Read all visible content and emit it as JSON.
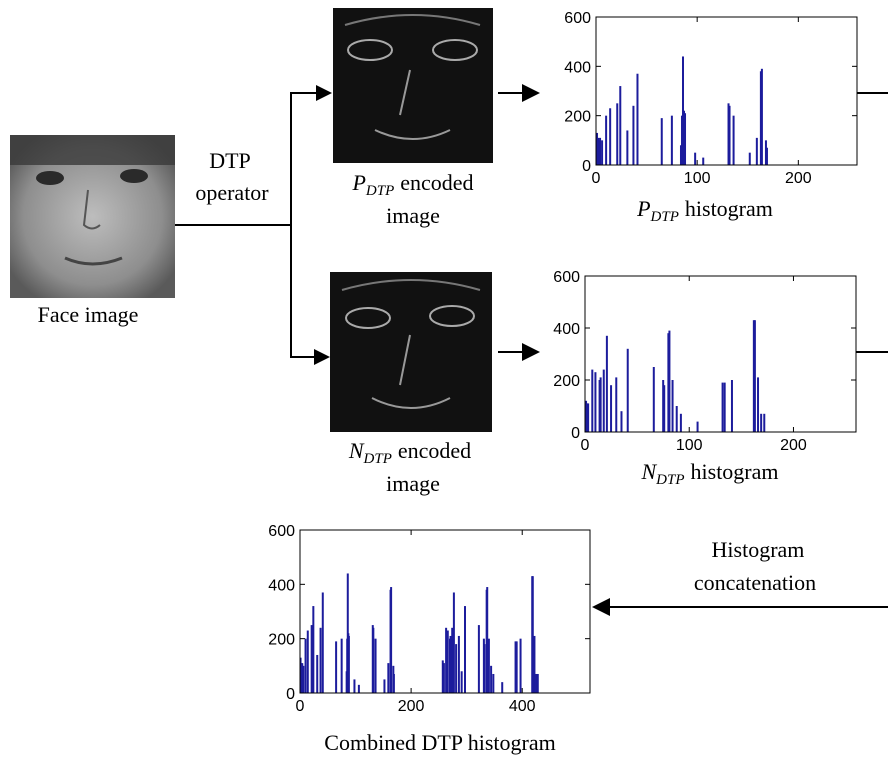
{
  "nodes": {
    "face": {
      "label": "Face image"
    },
    "operator": {
      "line1": "DTP",
      "line2": "operator"
    },
    "p_encoded": {
      "symbol": "P",
      "subscript": "DTP",
      "text": "encoded",
      "line2": "image"
    },
    "n_encoded": {
      "symbol": "N",
      "subscript": "DTP",
      "text": "encoded",
      "line2": "image"
    },
    "concat": {
      "line1": "Histogram",
      "line2": "concatenation"
    }
  },
  "chart_data": [
    {
      "type": "bar",
      "title": {
        "symbol": "P",
        "subscript": "DTP",
        "text": "histogram"
      },
      "x": [
        1,
        2,
        3,
        4,
        6,
        10,
        14,
        21,
        24,
        31,
        37,
        41,
        65,
        75,
        84,
        85,
        86,
        87,
        88,
        98,
        106,
        131,
        132,
        136,
        152,
        159,
        163,
        164,
        168,
        169
      ],
      "values": [
        130,
        110,
        100,
        110,
        100,
        200,
        230,
        250,
        320,
        140,
        240,
        370,
        190,
        200,
        80,
        200,
        440,
        220,
        210,
        50,
        30,
        250,
        240,
        200,
        50,
        110,
        380,
        390,
        100,
        70
      ],
      "color": "#1c1c9c",
      "xlim": [
        0,
        258
      ],
      "xticks": [
        0,
        100,
        200
      ],
      "ylim": [
        0,
        600
      ],
      "yticks": [
        0,
        200,
        400,
        600
      ]
    },
    {
      "type": "bar",
      "title": {
        "symbol": "N",
        "subscript": "DTP",
        "text": "histogram"
      },
      "x": [
        1,
        2,
        3,
        7,
        10,
        14,
        15,
        18,
        21,
        25,
        30,
        35,
        41,
        66,
        75,
        76,
        80,
        81,
        84,
        88,
        92,
        108,
        132,
        134,
        141,
        162,
        163,
        166,
        169,
        172
      ],
      "values": [
        120,
        110,
        110,
        240,
        230,
        200,
        210,
        240,
        370,
        180,
        210,
        80,
        320,
        250,
        200,
        180,
        380,
        390,
        200,
        100,
        70,
        40,
        190,
        190,
        200,
        430,
        430,
        210,
        70,
        70
      ],
      "color": "#1c1c9c",
      "xlim": [
        0,
        260
      ],
      "xticks": [
        0,
        100,
        200
      ],
      "ylim": [
        0,
        600
      ],
      "yticks": [
        0,
        200,
        400,
        600
      ]
    },
    {
      "type": "bar",
      "title": "Combined DTP histogram",
      "x": [
        1,
        2,
        3,
        4,
        6,
        10,
        14,
        21,
        24,
        31,
        37,
        41,
        65,
        75,
        84,
        85,
        86,
        87,
        88,
        98,
        106,
        131,
        132,
        136,
        152,
        159,
        163,
        164,
        168,
        169,
        257,
        258,
        259,
        263,
        266,
        270,
        271,
        274,
        277,
        281,
        286,
        291,
        297,
        322,
        331,
        332,
        336,
        337,
        340,
        344,
        348,
        364,
        388,
        390,
        397,
        418,
        419,
        422,
        425,
        428
      ],
      "values": [
        130,
        110,
        100,
        110,
        100,
        200,
        230,
        250,
        320,
        140,
        240,
        370,
        190,
        200,
        80,
        200,
        440,
        220,
        210,
        50,
        30,
        250,
        240,
        200,
        50,
        110,
        380,
        390,
        100,
        70,
        120,
        110,
        110,
        240,
        230,
        200,
        210,
        240,
        370,
        180,
        210,
        80,
        320,
        250,
        200,
        180,
        380,
        390,
        200,
        100,
        70,
        40,
        190,
        190,
        200,
        430,
        430,
        210,
        70,
        70
      ],
      "color": "#1c1c9c",
      "xlim": [
        0,
        522
      ],
      "xticks": [
        0,
        200,
        400
      ],
      "ylim": [
        0,
        600
      ],
      "yticks": [
        0,
        200,
        400,
        600
      ]
    }
  ]
}
